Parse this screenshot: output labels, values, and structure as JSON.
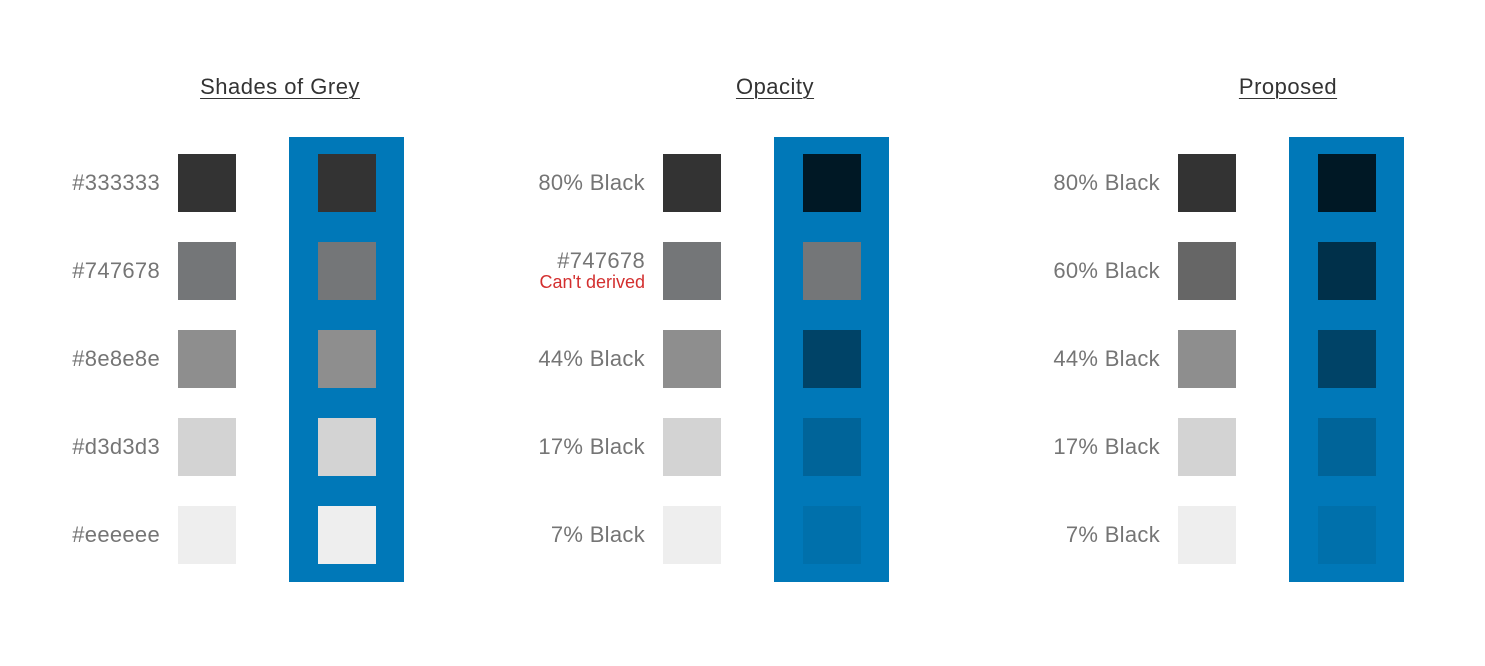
{
  "panel_color": "#0078b8",
  "columns": [
    {
      "title": "Shades of Grey",
      "rows": [
        {
          "label": "#333333",
          "note": "",
          "swatch": "#333333",
          "blue_swatch": "#333333"
        },
        {
          "label": "#747678",
          "note": "",
          "swatch": "#747678",
          "blue_swatch": "#747678"
        },
        {
          "label": "#8e8e8e",
          "note": "",
          "swatch": "#8e8e8e",
          "blue_swatch": "#8e8e8e"
        },
        {
          "label": "#d3d3d3",
          "note": "",
          "swatch": "#d3d3d3",
          "blue_swatch": "#d3d3d3"
        },
        {
          "label": "#eeeeee",
          "note": "",
          "swatch": "#eeeeee",
          "blue_swatch": "#eeeeee"
        }
      ]
    },
    {
      "title": "Opacity",
      "rows": [
        {
          "label": "80% Black",
          "note": "",
          "swatch": "#333333",
          "blue_swatch": "#001825"
        },
        {
          "label": "#747678",
          "note": "Can't derived",
          "swatch": "#747678",
          "blue_swatch": "#747678"
        },
        {
          "label": "44% Black",
          "note": "",
          "swatch": "#8e8e8e",
          "blue_swatch": "#004367"
        },
        {
          "label": "17% Black",
          "note": "",
          "swatch": "#d3d3d3",
          "blue_swatch": "#006499"
        },
        {
          "label": "7% Black",
          "note": "",
          "swatch": "#eeeeee",
          "blue_swatch": "#0070ab"
        }
      ]
    },
    {
      "title": "Proposed",
      "rows": [
        {
          "label": "80% Black",
          "note": "",
          "swatch": "#333333",
          "blue_swatch": "#001825"
        },
        {
          "label": "60% Black",
          "note": "",
          "swatch": "#666666",
          "blue_swatch": "#00304a"
        },
        {
          "label": "44% Black",
          "note": "",
          "swatch": "#8e8e8e",
          "blue_swatch": "#004367"
        },
        {
          "label": "17% Black",
          "note": "",
          "swatch": "#d3d3d3",
          "blue_swatch": "#006499"
        },
        {
          "label": "7% Black",
          "note": "",
          "swatch": "#eeeeee",
          "blue_swatch": "#0070ab"
        }
      ]
    }
  ]
}
